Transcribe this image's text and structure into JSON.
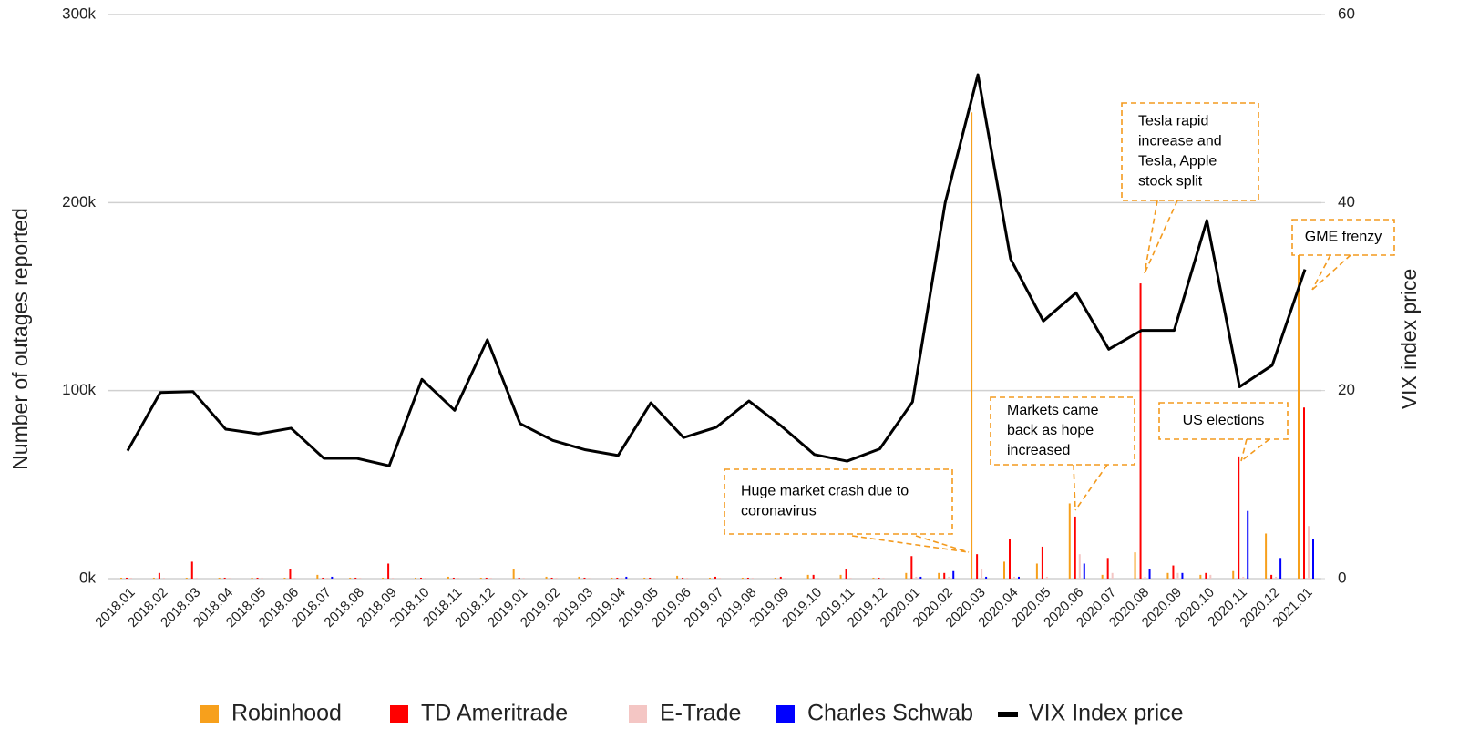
{
  "chart_data": {
    "type": "bar",
    "y_label": "Number of outages reported",
    "y2_label": "VIX index price",
    "categories": [
      "2018.01",
      "2018.02",
      "2018.03",
      "2018.04",
      "2018.05",
      "2018.06",
      "2018.07",
      "2018.08",
      "2018.09",
      "2018.10",
      "2018.11",
      "2018.12",
      "2019.01",
      "2019.02",
      "2019.03",
      "2019.04",
      "2019.05",
      "2019.06",
      "2019.07",
      "2019.08",
      "2019.09",
      "2019.10",
      "2019.11",
      "2019.12",
      "2020.01",
      "2020.02",
      "2020.03",
      "2020.04",
      "2020.05",
      "2020.06",
      "2020.07",
      "2020.08",
      "2020.09",
      "2020.10",
      "2020.11",
      "2020.12",
      "2021.01"
    ],
    "ylim": [
      0,
      300000
    ],
    "yticks": [
      {
        "value": 0,
        "label": "0k"
      },
      {
        "value": 100000,
        "label": "100k"
      },
      {
        "value": 200000,
        "label": "200k"
      },
      {
        "value": 300000,
        "label": "300k"
      }
    ],
    "y2lim": [
      0,
      60
    ],
    "y2ticks": [
      0,
      20,
      40,
      60
    ],
    "grid": true,
    "legend": "bottom",
    "series": [
      {
        "name": "Robinhood",
        "type": "bar",
        "color": "#f7a01c",
        "values": [
          500,
          500,
          500,
          500,
          500,
          500,
          2000,
          500,
          500,
          500,
          1000,
          500,
          5000,
          1000,
          1000,
          500,
          500,
          1500,
          500,
          500,
          500,
          2000,
          2000,
          500,
          3000,
          3000,
          248000,
          9000,
          8000,
          40000,
          2000,
          14000,
          3000,
          2000,
          4000,
          24000,
          175000
        ]
      },
      {
        "name": "TD Ameritrade",
        "type": "bar",
        "color": "#ff0000",
        "values": [
          500,
          3000,
          9000,
          500,
          500,
          5000,
          500,
          500,
          8000,
          500,
          500,
          500,
          500,
          500,
          500,
          500,
          500,
          500,
          1000,
          500,
          1000,
          2000,
          5000,
          500,
          12000,
          3000,
          13000,
          21000,
          17000,
          33000,
          11000,
          157000,
          7000,
          3000,
          65000,
          2000,
          91000
        ]
      },
      {
        "name": "E-Trade",
        "type": "bar",
        "color": "#f4c6c4",
        "values": [
          500,
          500,
          500,
          500,
          500,
          500,
          500,
          500,
          500,
          500,
          500,
          500,
          500,
          500,
          500,
          500,
          500,
          500,
          500,
          500,
          500,
          500,
          500,
          500,
          1000,
          1000,
          5000,
          1000,
          1000,
          13000,
          3000,
          1000,
          3000,
          2000,
          1000,
          1000,
          28000
        ]
      },
      {
        "name": "Charles Schwab",
        "type": "bar",
        "color": "#0000ff",
        "values": [
          0,
          0,
          0,
          0,
          0,
          0,
          1000,
          0,
          0,
          0,
          0,
          0,
          0,
          0,
          0,
          1000,
          0,
          0,
          0,
          0,
          0,
          0,
          0,
          0,
          1000,
          4000,
          1000,
          1000,
          0,
          8000,
          0,
          5000,
          3000,
          0,
          36000,
          11000,
          21000
        ]
      },
      {
        "name": "VIX Index price",
        "type": "line",
        "axis": "y2",
        "color": "#000000",
        "values": [
          13.6,
          19.8,
          19.9,
          15.9,
          15.4,
          16.0,
          12.8,
          12.8,
          12.0,
          21.2,
          17.9,
          25.4,
          16.5,
          14.7,
          13.7,
          13.1,
          18.7,
          15.0,
          16.1,
          18.9,
          16.2,
          13.2,
          12.5,
          13.8,
          18.8,
          40.0,
          53.6,
          34.0,
          27.4,
          30.4,
          24.4,
          26.4,
          26.4,
          38.1,
          20.4,
          22.7,
          32.9
        ]
      }
    ],
    "annotations": [
      {
        "lines": [
          "Huge market crash due to",
          "coronavirus"
        ]
      },
      {
        "lines": [
          "Markets came",
          "back as hope",
          "increased"
        ]
      },
      {
        "lines": [
          "Tesla rapid",
          "increase and",
          "Tesla, Apple",
          "stock split"
        ]
      },
      {
        "lines": [
          "US elections"
        ]
      },
      {
        "lines": [
          "GME frenzy"
        ]
      }
    ]
  }
}
